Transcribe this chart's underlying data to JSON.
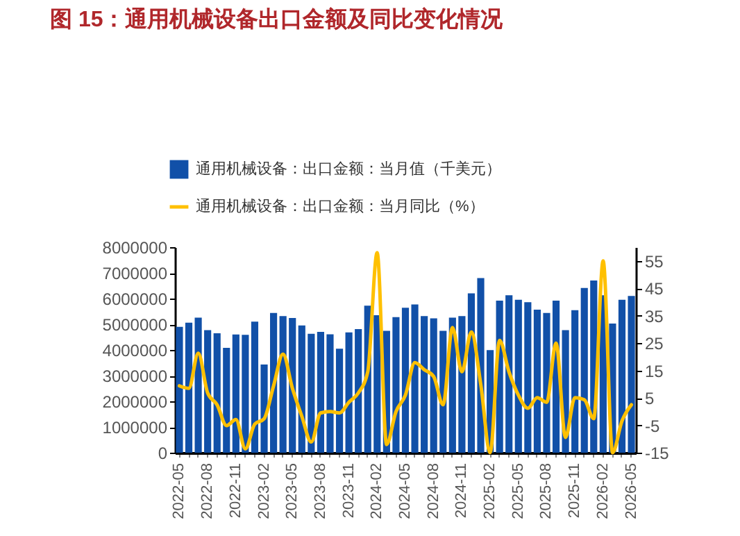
{
  "chart_data": {
    "type": "bar",
    "title": "图 15：通用机械设备出口金额及同比变化情况",
    "categories": [
      "2022-05",
      null,
      null,
      "2022-08",
      null,
      null,
      "2022-11",
      null,
      null,
      "2023-02",
      null,
      null,
      "2023-05",
      null,
      null,
      "2023-08",
      null,
      null,
      "2023-11",
      null,
      null,
      "2024-02",
      null,
      null,
      "2024-05",
      null,
      null,
      "2024-08",
      null,
      null,
      "2024-11",
      null,
      null,
      "2025-02",
      null,
      null,
      "2025-05",
      null,
      null,
      "2025-08",
      null,
      null,
      "2025-11",
      null,
      null,
      "2026-02",
      null,
      null,
      "2026-05"
    ],
    "series": [
      {
        "name": "通用机械设备：出口金额：当月值（千美元）",
        "type": "bar",
        "color": "#1150a8",
        "values": [
          4900000,
          5060000,
          5260000,
          4770000,
          4650000,
          4080000,
          4600000,
          4590000,
          5100000,
          3430000,
          5440000,
          5320000,
          5240000,
          4950000,
          4630000,
          4700000,
          4610000,
          4050000,
          4680000,
          4810000,
          5720000,
          5350000,
          4740000,
          5280000,
          5640000,
          5770000,
          5320000,
          5230000,
          4740000,
          5260000,
          5320000,
          6200000,
          6800000,
          3990000,
          5920000,
          6130000,
          5950000,
          5860000,
          5570000,
          5440000,
          5920000,
          4770000,
          5550000,
          6410000,
          6700000,
          6130000,
          5030000,
          5950000,
          6100000
        ]
      },
      {
        "name": "通用机械设备：出口金额：当月同比（%）",
        "type": "line",
        "axis": "y2",
        "color": "#ffc000",
        "values": [
          9.4,
          8.5,
          21.3,
          6.8,
          2.5,
          -5.1,
          -2.9,
          -13.6,
          -4.6,
          -2.6,
          9.4,
          21,
          8.5,
          -1.7,
          -11.1,
          -0.5,
          0,
          -0.5,
          3.4,
          6.8,
          14.5,
          58,
          -12,
          0,
          6,
          17.9,
          15.3,
          12.8,
          2.5,
          30.7,
          14.5,
          29,
          10,
          -15,
          26,
          14.5,
          6,
          1.2,
          5.1,
          3.4,
          25,
          -9.4,
          5.1,
          4.3,
          -2.6,
          55,
          -15,
          -3.4,
          2.5
        ]
      }
    ],
    "ylim": [
      0,
      8000000
    ],
    "yticks": [
      0,
      1000000,
      2000000,
      3000000,
      4000000,
      5000000,
      6000000,
      7000000,
      8000000
    ],
    "y2lim": [
      -15,
      60
    ],
    "y2ticks": [
      -15,
      -5,
      5,
      15,
      25,
      35,
      45,
      55
    ],
    "legend": "top"
  }
}
